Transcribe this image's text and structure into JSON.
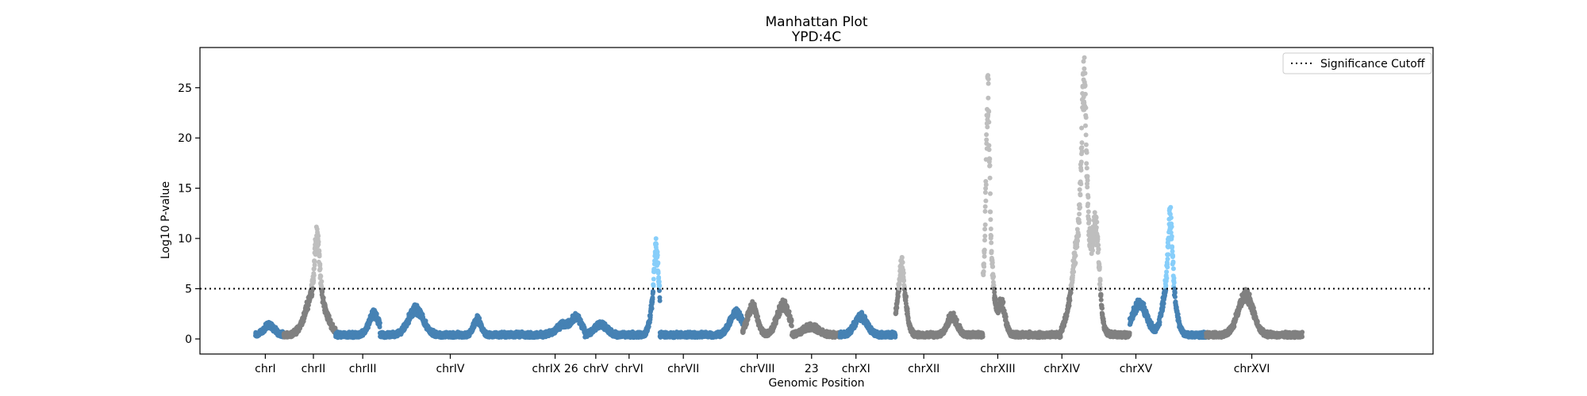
{
  "chart_data": {
    "type": "scatter",
    "title": "Manhattan Plot",
    "subtitle": "YPD:4C",
    "xlabel": "Genomic Position",
    "ylabel": "Log10 P-value",
    "ylim": [
      -1.5,
      29
    ],
    "yticks": [
      0,
      5,
      10,
      15,
      20,
      25
    ],
    "xlim": [
      0,
      100
    ],
    "significance_cutoff": 5,
    "legend": {
      "label": "Significance Cutoff",
      "placement": "top-right"
    },
    "grid": false,
    "colors": {
      "odd_below": "#4682B4",
      "odd_above": "#87CEFA",
      "even_below": "#808080",
      "even_above": "#BEBEBE",
      "cutoff_line": "#000000"
    },
    "chromosomes": [
      {
        "label": "chrI",
        "start": 4.5,
        "end": 6.8,
        "tick": 5.3,
        "color": "odd",
        "peaks": [
          [
            5.6,
            1.0,
            0.4
          ]
        ]
      },
      {
        "label": "chrII",
        "start": 6.8,
        "end": 11.0,
        "tick": 9.2,
        "color": "even",
        "peaks": [
          [
            9.4,
            4.8,
            0.7
          ],
          [
            9.5,
            5.0,
            0.18
          ]
        ]
      },
      {
        "label": "chrIII",
        "start": 11.0,
        "end": 14.6,
        "tick": 13.2,
        "color": "odd",
        "peaks": [
          [
            14.1,
            2.0,
            0.4
          ]
        ]
      },
      {
        "label": "chrIV",
        "start": 14.6,
        "end": 26.5,
        "tick": 20.3,
        "color": "odd",
        "peaks": [
          [
            17.5,
            2.5,
            0.6
          ],
          [
            22.5,
            1.5,
            0.3
          ]
        ]
      },
      {
        "label": "chrIX 26",
        "start": 26.5,
        "end": 31.2,
        "tick": 28.8,
        "color": "odd",
        "peaks": [
          [
            29.5,
            1.0,
            0.6
          ],
          [
            30.6,
            1.5,
            0.4
          ]
        ]
      },
      {
        "label": "chrV",
        "start": 31.2,
        "end": 33.7,
        "tick": 32.1,
        "color": "odd",
        "peaks": [
          [
            32.5,
            1.0,
            0.5
          ]
        ]
      },
      {
        "label": "chrVI",
        "start": 33.7,
        "end": 37.3,
        "tick": 34.8,
        "color": "odd",
        "peaks": [
          [
            37.0,
            4.8,
            0.35
          ],
          [
            37.0,
            3.6,
            0.15
          ]
        ]
      },
      {
        "label": "chrVII",
        "start": 37.3,
        "end": 44.0,
        "tick": 39.2,
        "color": "odd",
        "peaks": [
          [
            43.5,
            2.2,
            0.5
          ]
        ]
      },
      {
        "label": "chrVIII",
        "start": 44.0,
        "end": 48.0,
        "tick": 45.2,
        "color": "even",
        "peaks": [
          [
            44.8,
            2.8,
            0.4
          ],
          [
            47.3,
            3.0,
            0.5
          ]
        ]
      },
      {
        "label": "23",
        "start": 48.0,
        "end": 51.9,
        "tick": 49.6,
        "color": "even",
        "peaks": [
          [
            49.5,
            0.8,
            0.6
          ]
        ]
      },
      {
        "label": "chrXI",
        "start": 51.9,
        "end": 56.4,
        "tick": 53.2,
        "color": "odd",
        "peaks": [
          [
            53.6,
            1.8,
            0.5
          ]
        ]
      },
      {
        "label": "chrXII",
        "start": 56.4,
        "end": 63.5,
        "tick": 58.7,
        "color": "even",
        "peaks": [
          [
            56.9,
            5.5,
            0.35
          ],
          [
            56.9,
            1.5,
            0.12
          ],
          [
            61.0,
            1.8,
            0.4
          ]
        ]
      },
      {
        "label": "chrXIII",
        "start": 63.5,
        "end": 69.8,
        "tick": 64.7,
        "color": "even",
        "peaks": [
          [
            63.9,
            11.0,
            0.35
          ],
          [
            63.9,
            13.0,
            0.12
          ],
          [
            65.0,
            3.0,
            0.3
          ]
        ]
      },
      {
        "label": "chrXIV",
        "start": 69.8,
        "end": 75.4,
        "tick": 69.9,
        "color": "even",
        "peaks": [
          [
            71.6,
            12.0,
            0.7
          ],
          [
            71.7,
            13.0,
            0.18
          ],
          [
            72.7,
            7.0,
            0.25
          ]
        ]
      },
      {
        "label": "chrXV",
        "start": 75.4,
        "end": 81.6,
        "tick": 75.9,
        "color": "odd",
        "peaks": [
          [
            76.2,
            3.0,
            0.6
          ],
          [
            78.6,
            6.0,
            0.45
          ],
          [
            78.7,
            6.0,
            0.15
          ]
        ]
      },
      {
        "label": "chrXVI",
        "start": 81.6,
        "end": 89.4,
        "tick": 85.3,
        "color": "even",
        "peaks": [
          [
            84.8,
            4.0,
            0.6
          ]
        ]
      }
    ]
  }
}
